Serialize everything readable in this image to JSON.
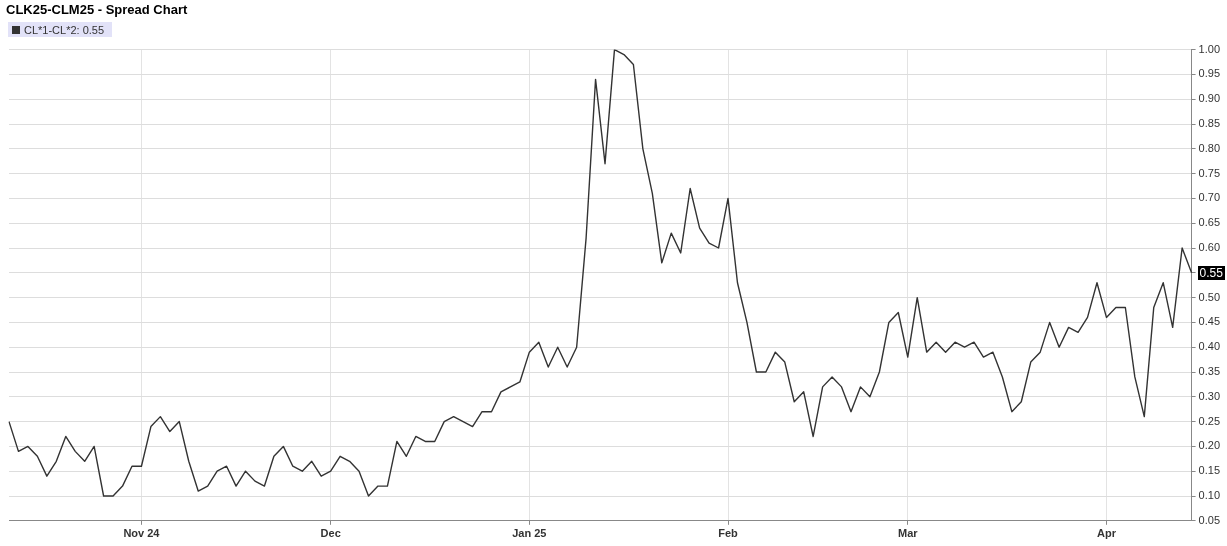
{
  "chart_data": {
    "type": "line",
    "title": "CLK25-CLM25 - Spread Chart",
    "categories": [
      null,
      null,
      null,
      null,
      null,
      null,
      null,
      null,
      null,
      null,
      null,
      null,
      null,
      null,
      "Nov 24",
      null,
      null,
      null,
      null,
      null,
      null,
      null,
      null,
      null,
      null,
      null,
      null,
      null,
      null,
      null,
      null,
      null,
      null,
      null,
      "Dec",
      null,
      null,
      null,
      null,
      null,
      null,
      null,
      null,
      null,
      null,
      null,
      null,
      null,
      null,
      null,
      null,
      null,
      null,
      null,
      null,
      "Jan 25",
      null,
      null,
      null,
      null,
      null,
      null,
      null,
      null,
      null,
      null,
      null,
      null,
      null,
      null,
      null,
      null,
      null,
      null,
      null,
      null,
      "Feb",
      null,
      null,
      null,
      null,
      null,
      null,
      null,
      null,
      null,
      null,
      null,
      null,
      null,
      null,
      null,
      null,
      null,
      null,
      "Mar",
      null,
      null,
      null,
      null,
      null,
      null,
      null,
      null,
      null,
      null,
      null,
      null,
      null,
      null,
      null,
      null,
      null,
      null,
      null,
      null,
      "Apr",
      null,
      null,
      null,
      null,
      null,
      null,
      null,
      null,
      null
    ],
    "series": [
      {
        "name": "CL*1-CL*2: 0.55",
        "color": "#333333",
        "values": [
          0.25,
          0.19,
          0.2,
          0.18,
          0.14,
          0.17,
          0.22,
          0.19,
          0.17,
          0.2,
          0.1,
          0.1,
          0.12,
          0.16,
          0.16,
          0.24,
          0.26,
          0.23,
          0.25,
          0.17,
          0.11,
          0.12,
          0.15,
          0.16,
          0.12,
          0.15,
          0.13,
          0.12,
          0.18,
          0.2,
          0.16,
          0.15,
          0.17,
          0.14,
          0.15,
          0.18,
          0.17,
          0.15,
          0.1,
          0.12,
          0.12,
          0.21,
          0.18,
          0.22,
          0.21,
          0.21,
          0.25,
          0.26,
          0.25,
          0.24,
          0.27,
          0.27,
          0.31,
          0.32,
          0.33,
          0.39,
          0.41,
          0.36,
          0.4,
          0.36,
          0.4,
          0.62,
          0.94,
          0.77,
          1.0,
          0.99,
          0.97,
          0.8,
          0.71,
          0.57,
          0.63,
          0.59,
          0.72,
          0.64,
          0.61,
          0.6,
          0.7,
          0.53,
          0.45,
          0.35,
          0.35,
          0.39,
          0.37,
          0.29,
          0.31,
          0.22,
          0.32,
          0.34,
          0.32,
          0.27,
          0.32,
          0.3,
          0.35,
          0.45,
          0.47,
          0.38,
          0.5,
          0.39,
          0.41,
          0.39,
          0.41,
          0.4,
          0.41,
          0.38,
          0.39,
          0.34,
          0.27,
          0.29,
          0.37,
          0.39,
          0.45,
          0.4,
          0.44,
          0.43,
          0.46,
          0.53,
          0.46,
          0.48,
          0.48,
          0.34,
          0.26,
          0.48,
          0.53,
          0.44,
          0.6,
          0.55
        ]
      }
    ],
    "ylim": [
      0.05,
      1.0
    ],
    "yticks": [
      0.05,
      {
        "value": 0.1,
        "label": "0.10"
      },
      0.15,
      {
        "value": 0.2,
        "label": "0.20"
      },
      0.25,
      {
        "value": 0.3,
        "label": "0.30"
      },
      0.35,
      {
        "value": 0.4,
        "label": "0.40"
      },
      0.45,
      {
        "value": 0.5,
        "label": "0.50"
      },
      0.55,
      {
        "value": 0.6,
        "label": "0.60"
      },
      0.65,
      {
        "value": 0.7,
        "label": "0.70"
      },
      0.75,
      {
        "value": 0.8,
        "label": "0.80"
      },
      0.85,
      {
        "value": 0.9,
        "label": "0.90"
      },
      0.95,
      {
        "value": 1.0,
        "label": "1.00"
      }
    ],
    "annotations": [
      "0.55"
    ],
    "grid": true,
    "legend": "top left",
    "marker": "none",
    "line_style": "solid"
  }
}
